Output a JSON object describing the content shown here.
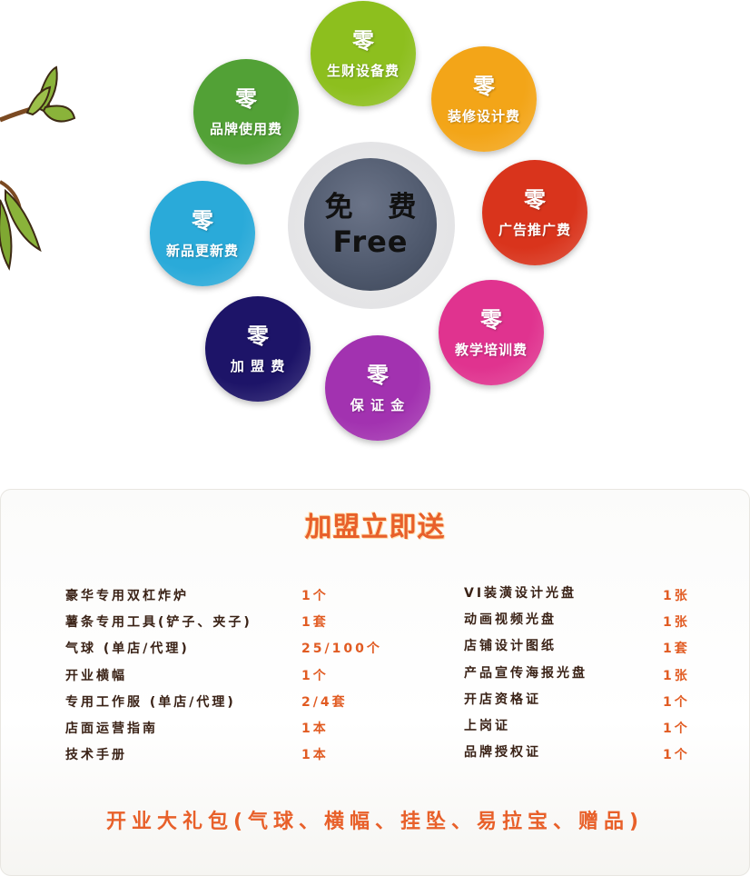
{
  "colors": {
    "accent_orange": "#e8602a",
    "item_text": "#3a2216",
    "quantity_text": "#e15b22"
  },
  "center": {
    "line1": "免 费",
    "line2": "Free"
  },
  "circles": [
    {
      "zero": "零",
      "label": "生财设备费",
      "color": "#8dbf1e"
    },
    {
      "zero": "零",
      "label": "装修设计费",
      "color": "#f3a518"
    },
    {
      "zero": "零",
      "label": "广告推广费",
      "color": "#d9341c"
    },
    {
      "zero": "零",
      "label": "教学培训费",
      "color": "#e0338f"
    },
    {
      "zero": "零",
      "label": "保 证 金",
      "color": "#a232b0"
    },
    {
      "zero": "零",
      "label": "加 盟 费",
      "color": "#1d1468"
    },
    {
      "zero": "零",
      "label": "新品更新费",
      "color": "#2aaad9"
    },
    {
      "zero": "零",
      "label": "品牌使用费",
      "color": "#52a136"
    }
  ],
  "gift_section": {
    "title": "加盟立即送",
    "left_items": [
      {
        "name": "豪华专用双杠炸炉",
        "qty": "1个"
      },
      {
        "name": "薯条专用工具(铲子、夹子)",
        "qty": "1套"
      },
      {
        "name": "气球 (单店/代理)",
        "qty": "25/100个"
      },
      {
        "name": "开业横幅",
        "qty": "1个"
      },
      {
        "name": "专用工作服  (单店/代理)",
        "qty": "2/4套"
      },
      {
        "name": "店面运营指南",
        "qty": "1本"
      },
      {
        "name": "技术手册",
        "qty": "1本"
      }
    ],
    "right_items": [
      {
        "name": "VI装潢设计光盘",
        "qty": "1张"
      },
      {
        "name": "动画视频光盘",
        "qty": "1张"
      },
      {
        "name": "店铺设计图纸",
        "qty": "1套"
      },
      {
        "name": "产品宣传海报光盘",
        "qty": "1张"
      },
      {
        "name": "开店资格证",
        "qty": "1个"
      },
      {
        "name": "上岗证",
        "qty": "1个"
      },
      {
        "name": "品牌授权证",
        "qty": "1个"
      }
    ],
    "footer": "开业大礼包(气球、横幅、挂坠、易拉宝、赠品)"
  }
}
